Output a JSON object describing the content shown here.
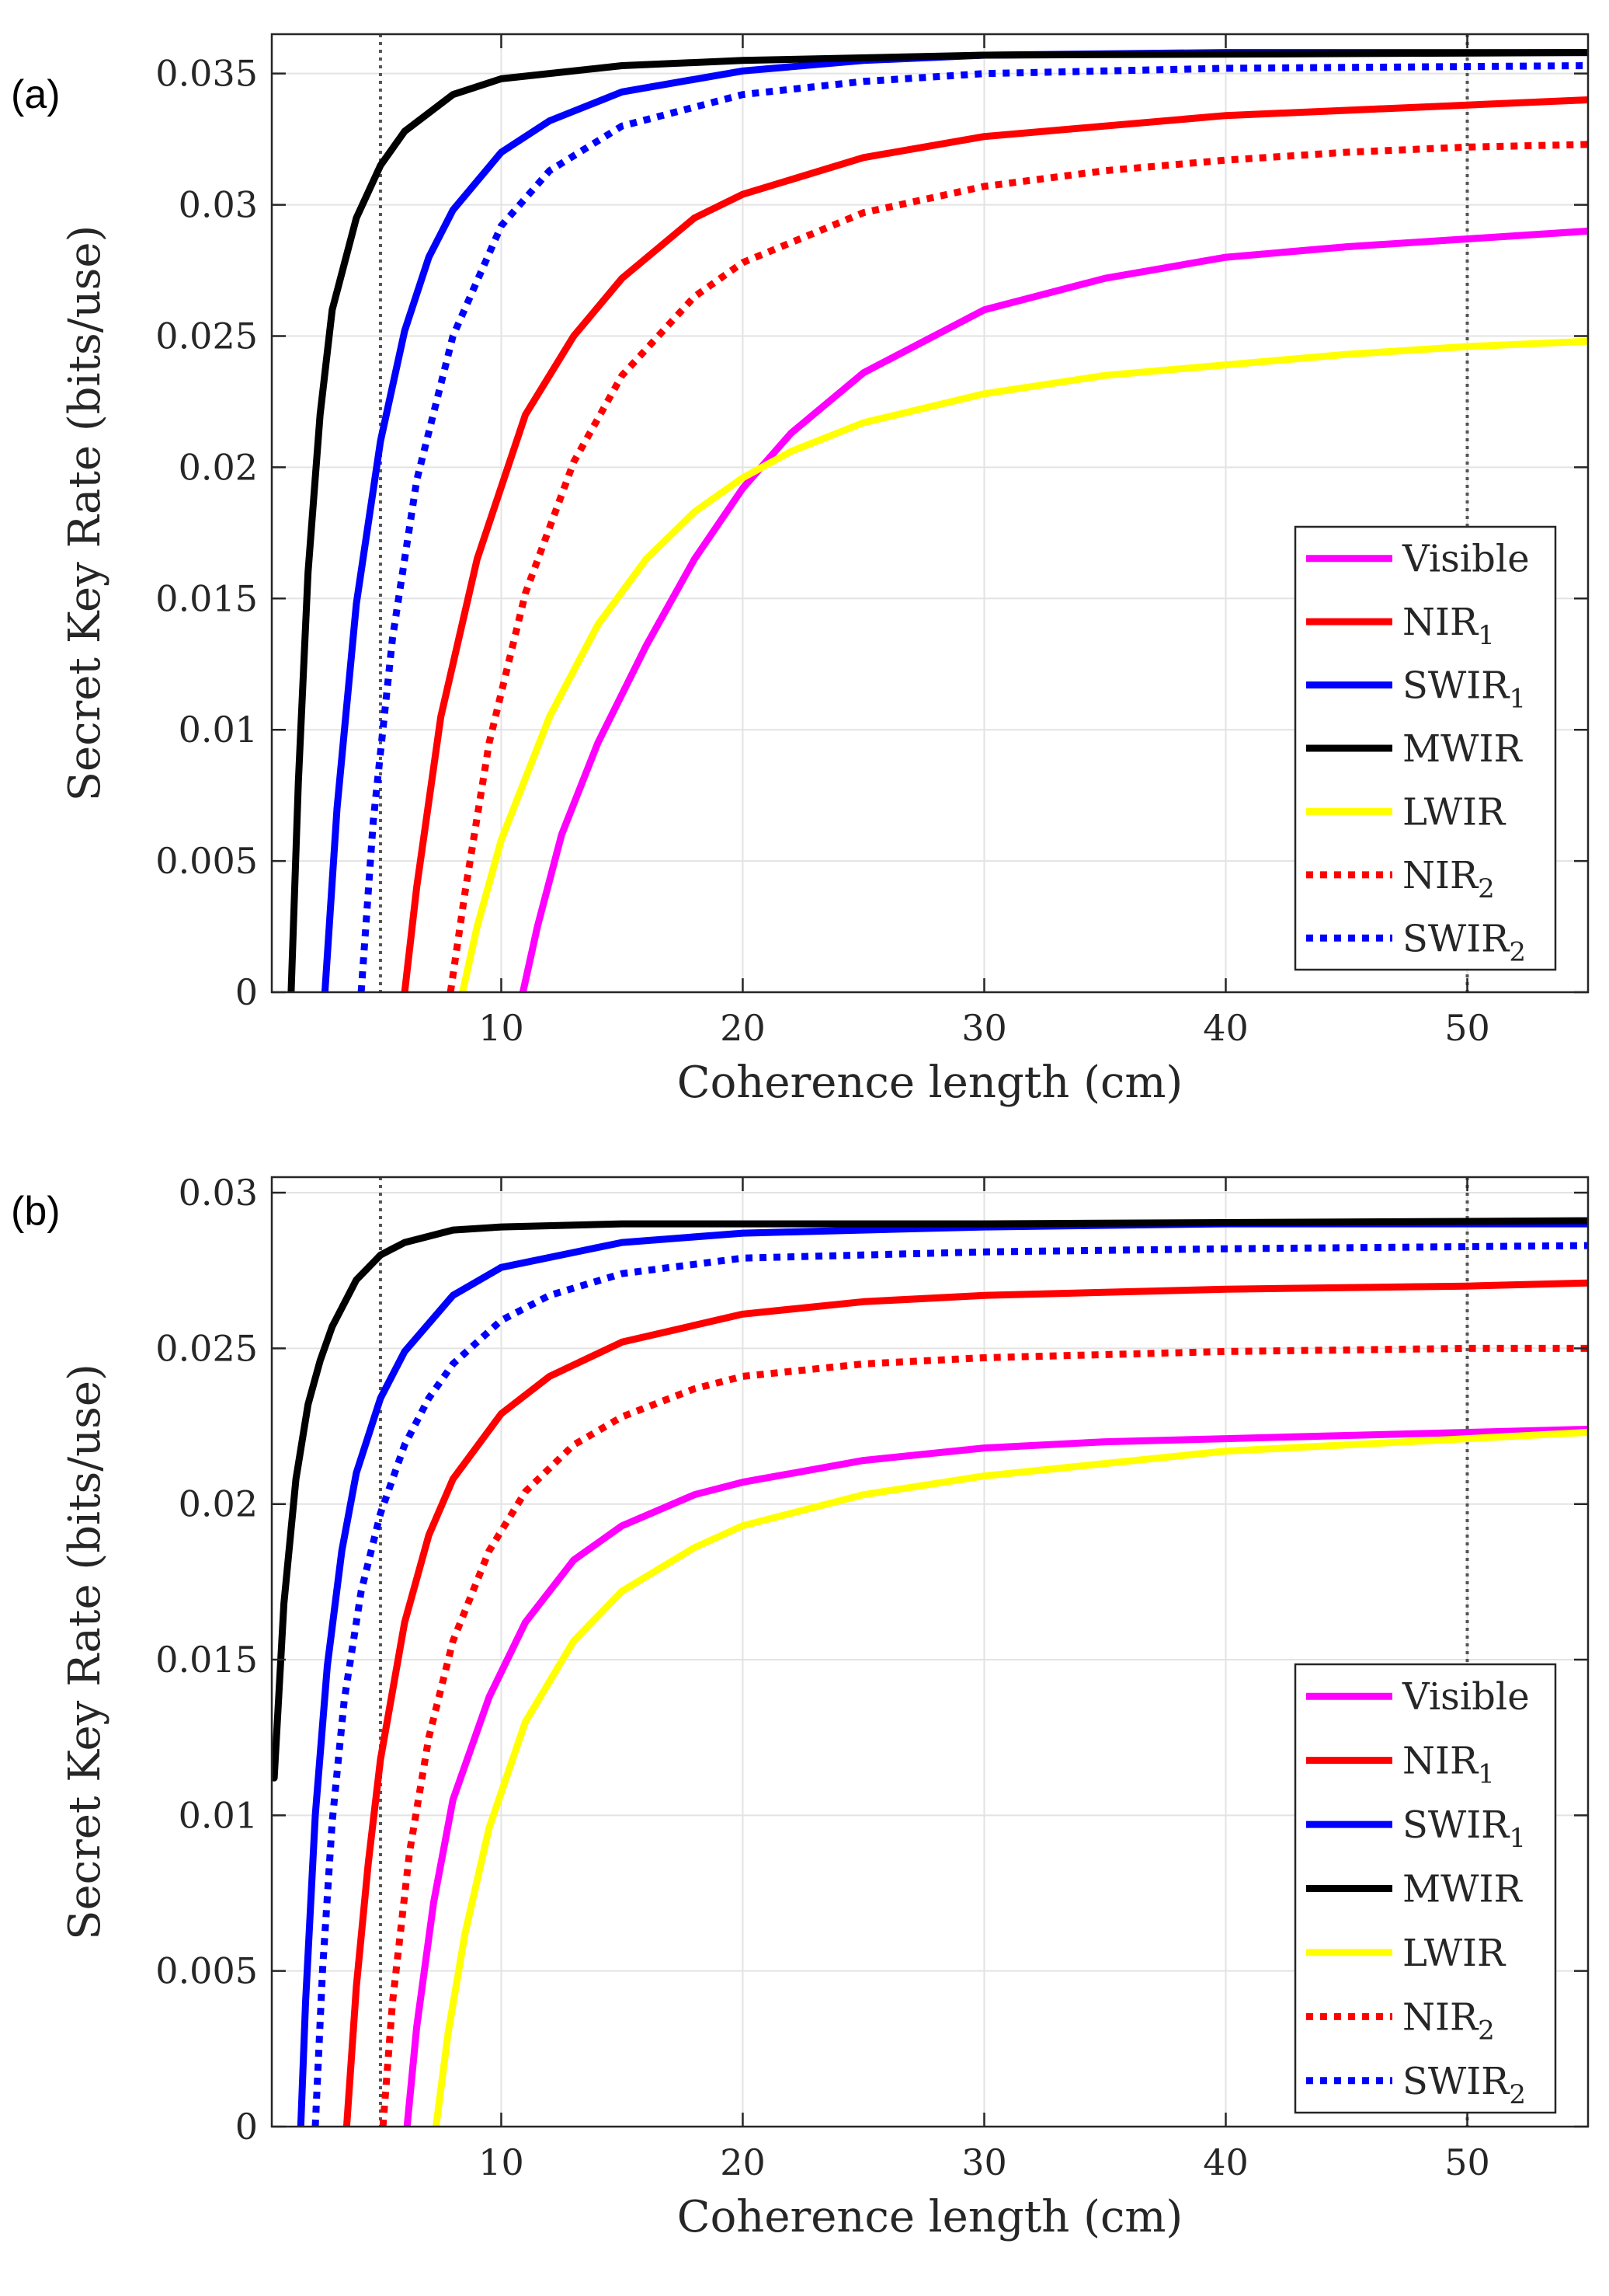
{
  "chart_data": [
    {
      "panel_label": "(a)",
      "type": "line",
      "title": "",
      "xlabel": "Coherence length (cm)",
      "ylabel": "Secret Key Rate (bits/use)",
      "xlim": [
        0.5,
        55
      ],
      "ylim": [
        0,
        0.0365
      ],
      "xticks": [
        10,
        20,
        30,
        40,
        50
      ],
      "xtick_labels": [
        "10",
        "20",
        "30",
        "40",
        "50"
      ],
      "yticks": [
        0,
        0.005,
        0.01,
        0.015,
        0.02,
        0.025,
        0.03,
        0.035
      ],
      "ytick_labels": [
        "0",
        "0.005",
        "0.01",
        "0.015",
        "0.02",
        "0.025",
        "0.03",
        "0.035"
      ],
      "grid": true,
      "vlines": [
        5,
        50
      ],
      "legend_position": "lower-right",
      "series": [
        {
          "name": "Visible",
          "name_base": "Visible",
          "name_sub": "",
          "color": "#ff00ff",
          "dash": "solid",
          "x": [
            10.9,
            11.5,
            12.5,
            14,
            16,
            18,
            20,
            22,
            25,
            30,
            35,
            40,
            45,
            50,
            55
          ],
          "y": [
            0,
            0.0025,
            0.006,
            0.0095,
            0.0132,
            0.0165,
            0.0192,
            0.0213,
            0.0236,
            0.026,
            0.0272,
            0.028,
            0.0284,
            0.0287,
            0.029
          ]
        },
        {
          "name": "NIR1",
          "name_base": "NIR",
          "name_sub": "1",
          "color": "#ff0000",
          "dash": "solid",
          "x": [
            6.0,
            6.5,
            7.5,
            9,
            11,
            13,
            15,
            18,
            20,
            25,
            30,
            35,
            40,
            45,
            50,
            55
          ],
          "y": [
            0,
            0.004,
            0.0105,
            0.0165,
            0.022,
            0.025,
            0.0272,
            0.0295,
            0.0304,
            0.0318,
            0.0326,
            0.033,
            0.0334,
            0.0336,
            0.0338,
            0.034
          ]
        },
        {
          "name": "SWIR1",
          "name_base": "SWIR",
          "name_sub": "1",
          "color": "#0000ff",
          "dash": "solid",
          "x": [
            2.7,
            3.2,
            4.0,
            5,
            6,
            7,
            8,
            10,
            12,
            15,
            20,
            25,
            30,
            40,
            55
          ],
          "y": [
            0,
            0.007,
            0.0148,
            0.021,
            0.0252,
            0.028,
            0.0298,
            0.032,
            0.0332,
            0.0343,
            0.0351,
            0.0355,
            0.0357,
            0.0358,
            0.0358
          ]
        },
        {
          "name": "MWIR",
          "name_base": "MWIR",
          "name_sub": "",
          "color": "#000000",
          "dash": "solid",
          "x": [
            1.3,
            1.6,
            2.0,
            2.5,
            3,
            4,
            5,
            6,
            8,
            10,
            15,
            20,
            30,
            55
          ],
          "y": [
            0,
            0.008,
            0.016,
            0.022,
            0.026,
            0.0295,
            0.0315,
            0.0328,
            0.0342,
            0.0348,
            0.0353,
            0.0355,
            0.0357,
            0.0358
          ]
        },
        {
          "name": "LWIR",
          "name_base": "LWIR",
          "name_sub": "",
          "color": "#ffff00",
          "dash": "solid",
          "x": [
            8.4,
            9,
            10,
            12,
            14,
            16,
            18,
            20,
            22,
            25,
            30,
            35,
            40,
            45,
            50,
            55
          ],
          "y": [
            0,
            0.0025,
            0.0058,
            0.0105,
            0.014,
            0.0165,
            0.0183,
            0.0196,
            0.0206,
            0.0217,
            0.0228,
            0.0235,
            0.0239,
            0.0243,
            0.0246,
            0.0248
          ]
        },
        {
          "name": "NIR2",
          "name_base": "NIR",
          "name_sub": "2",
          "color": "#ff0000",
          "dash": "dotted",
          "x": [
            7.9,
            8.5,
            9.5,
            11,
            13,
            15,
            18,
            20,
            25,
            30,
            35,
            40,
            45,
            50,
            55
          ],
          "y": [
            0,
            0.0038,
            0.0095,
            0.0152,
            0.0202,
            0.0235,
            0.0265,
            0.0278,
            0.0297,
            0.0307,
            0.0313,
            0.0317,
            0.032,
            0.0322,
            0.0323
          ]
        },
        {
          "name": "SWIR2",
          "name_base": "SWIR",
          "name_sub": "2",
          "color": "#0000ff",
          "dash": "dotted",
          "x": [
            4.2,
            4.7,
            5.5,
            6.5,
            8,
            10,
            12,
            15,
            20,
            25,
            30,
            40,
            55
          ],
          "y": [
            0,
            0.0065,
            0.0135,
            0.0195,
            0.025,
            0.0292,
            0.0313,
            0.033,
            0.0342,
            0.0347,
            0.035,
            0.0352,
            0.0353
          ]
        }
      ]
    },
    {
      "panel_label": "(b)",
      "type": "line",
      "title": "",
      "xlabel": "Coherence length (cm)",
      "ylabel": "Secret Key Rate (bits/use)",
      "xlim": [
        0.5,
        55
      ],
      "ylim": [
        0,
        0.0305
      ],
      "xticks": [
        10,
        20,
        30,
        40,
        50
      ],
      "xtick_labels": [
        "10",
        "20",
        "30",
        "40",
        "50"
      ],
      "yticks": [
        0,
        0.005,
        0.01,
        0.015,
        0.02,
        0.025,
        0.03
      ],
      "ytick_labels": [
        "0",
        "0.005",
        "0.01",
        "0.015",
        "0.02",
        "0.025",
        "0.03"
      ],
      "grid": true,
      "vlines": [
        5,
        50
      ],
      "legend_position": "lower-right",
      "series": [
        {
          "name": "Visible",
          "name_base": "Visible",
          "name_sub": "",
          "color": "#ff00ff",
          "dash": "solid",
          "x": [
            6.1,
            6.5,
            7.2,
            8,
            9.5,
            11,
            13,
            15,
            18,
            20,
            25,
            30,
            35,
            40,
            45,
            50,
            55
          ],
          "y": [
            0,
            0.0032,
            0.0072,
            0.0105,
            0.0138,
            0.0162,
            0.0182,
            0.0193,
            0.0203,
            0.0207,
            0.0214,
            0.0218,
            0.022,
            0.0221,
            0.0222,
            0.0223,
            0.0224
          ]
        },
        {
          "name": "NIR1",
          "name_base": "NIR",
          "name_sub": "1",
          "color": "#ff0000",
          "dash": "solid",
          "x": [
            3.6,
            4.0,
            4.5,
            5,
            6,
            7,
            8,
            10,
            12,
            15,
            20,
            25,
            30,
            40,
            50,
            55
          ],
          "y": [
            0,
            0.0045,
            0.0085,
            0.0118,
            0.0162,
            0.019,
            0.0208,
            0.0229,
            0.0241,
            0.0252,
            0.0261,
            0.0265,
            0.0267,
            0.0269,
            0.027,
            0.0271
          ]
        },
        {
          "name": "SWIR1",
          "name_base": "SWIR",
          "name_sub": "1",
          "color": "#0000ff",
          "dash": "solid",
          "x": [
            1.7,
            1.9,
            2.3,
            2.8,
            3.4,
            4,
            5,
            6,
            8,
            10,
            15,
            20,
            30,
            40,
            55
          ],
          "y": [
            0,
            0.004,
            0.01,
            0.0148,
            0.0185,
            0.021,
            0.0234,
            0.0249,
            0.0267,
            0.0276,
            0.0284,
            0.0287,
            0.0289,
            0.029,
            0.029
          ]
        },
        {
          "name": "MWIR",
          "name_base": "MWIR",
          "name_sub": "",
          "color": "#000000",
          "dash": "solid",
          "x": [
            0.6,
            1.0,
            1.5,
            2,
            2.5,
            3,
            4,
            5,
            6,
            8,
            10,
            15,
            20,
            30,
            55
          ],
          "y": [
            0.0112,
            0.0168,
            0.0208,
            0.0232,
            0.0246,
            0.0257,
            0.0272,
            0.028,
            0.0284,
            0.0288,
            0.0289,
            0.029,
            0.029,
            0.029,
            0.0291
          ]
        },
        {
          "name": "LWIR",
          "name_base": "LWIR",
          "name_sub": "",
          "color": "#ffff00",
          "dash": "solid",
          "x": [
            7.3,
            7.8,
            8.5,
            9.5,
            11,
            13,
            15,
            18,
            20,
            25,
            30,
            35,
            40,
            45,
            50,
            55
          ],
          "y": [
            0,
            0.003,
            0.0062,
            0.0096,
            0.013,
            0.0156,
            0.0172,
            0.0186,
            0.0193,
            0.0203,
            0.0209,
            0.0213,
            0.0217,
            0.0219,
            0.0221,
            0.0223
          ]
        },
        {
          "name": "NIR2",
          "name_base": "NIR",
          "name_sub": "2",
          "color": "#ff0000",
          "dash": "dotted",
          "x": [
            5.1,
            5.5,
            6.2,
            7,
            8,
            9.5,
            11,
            13,
            15,
            18,
            20,
            25,
            30,
            40,
            50,
            55
          ],
          "y": [
            0,
            0.004,
            0.0088,
            0.0125,
            0.0156,
            0.0185,
            0.0204,
            0.0219,
            0.0228,
            0.0237,
            0.0241,
            0.0245,
            0.0247,
            0.0249,
            0.025,
            0.025
          ]
        },
        {
          "name": "SWIR2",
          "name_base": "SWIR",
          "name_sub": "2",
          "color": "#0000ff",
          "dash": "dotted",
          "x": [
            2.3,
            2.6,
            3.0,
            3.5,
            4.2,
            5,
            6,
            7,
            8,
            10,
            12,
            15,
            20,
            30,
            40,
            55
          ],
          "y": [
            0,
            0.005,
            0.0098,
            0.0137,
            0.0172,
            0.0197,
            0.0219,
            0.0234,
            0.0245,
            0.0259,
            0.0267,
            0.0274,
            0.0279,
            0.0281,
            0.0282,
            0.0283
          ]
        }
      ]
    }
  ]
}
